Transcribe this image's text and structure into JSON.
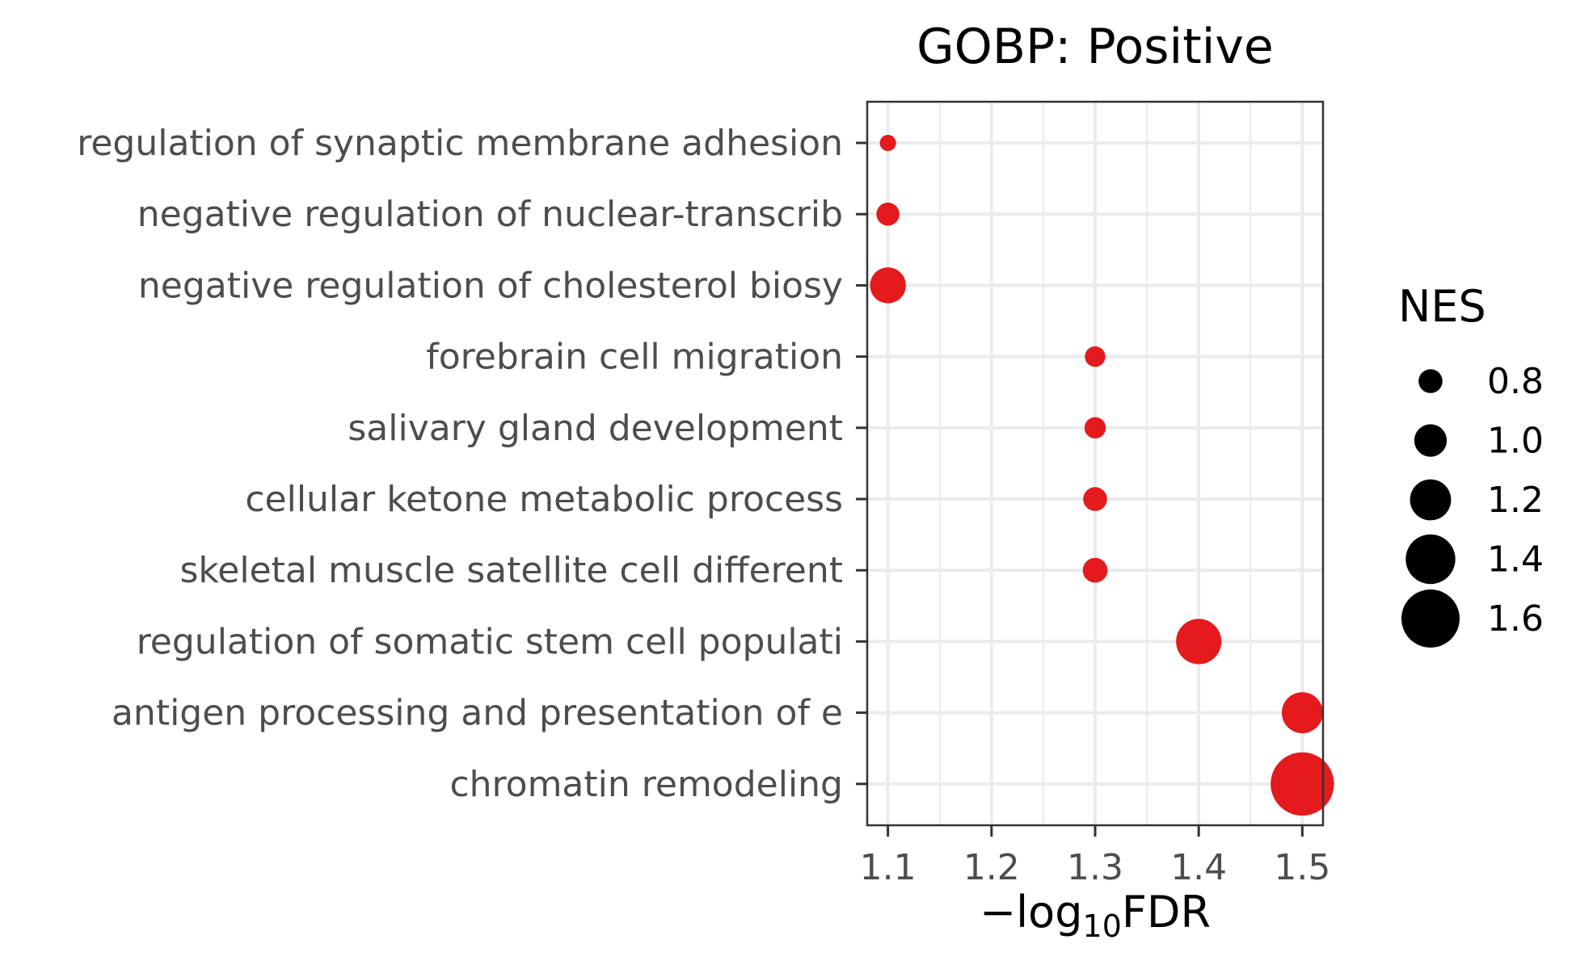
{
  "chart_data": {
    "type": "scatter",
    "title": "GOBP: Positive",
    "xlabel": {
      "prefix": "−log",
      "subscript": "10",
      "suffix": "FDR"
    },
    "ylabel": "",
    "xlim": [
      1.08,
      1.52
    ],
    "xticks": [
      "1.1",
      "1.2",
      "1.3",
      "1.4",
      "1.5"
    ],
    "grid": true,
    "legend_position": "right",
    "point_color": "#e41a1c",
    "categories": [
      "regulation of synaptic membrane adhesion",
      "negative regulation of nuclear-transcrib",
      "negative regulation of cholesterol biosy",
      "forebrain cell migration",
      "salivary gland development",
      "cellular ketone metabolic process",
      "skeletal muscle satellite cell different",
      "regulation of somatic stem cell populati",
      "antigen processing and presentation of e",
      "chromatin remodeling"
    ],
    "series": [
      {
        "x": [
          1.1,
          1.1,
          1.1,
          1.3,
          1.3,
          1.3,
          1.3,
          1.4,
          1.5,
          1.5
        ],
        "size": [
          0.62,
          0.78,
          1.08,
          0.72,
          0.74,
          0.8,
          0.82,
          1.3,
          1.2,
          1.72
        ]
      }
    ],
    "legend": {
      "title": "NES",
      "labels": [
        "0.8",
        "1.0",
        "1.2",
        "1.4",
        "1.6"
      ],
      "values": [
        0.8,
        1.0,
        1.2,
        1.4,
        1.6
      ]
    }
  }
}
